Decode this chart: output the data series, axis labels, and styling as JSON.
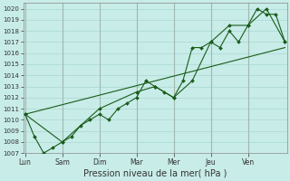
{
  "xlabel": "Pression niveau de la mer( hPa )",
  "background_color": "#c8ece8",
  "grid_color": "#a8d8d0",
  "line_color": "#1a5c1a",
  "ylim": [
    1007,
    1020.5
  ],
  "yticks": [
    1007,
    1008,
    1009,
    1010,
    1011,
    1012,
    1013,
    1014,
    1015,
    1016,
    1017,
    1018,
    1019,
    1020
  ],
  "day_labels": [
    "Lun",
    "Sam",
    "Dim",
    "Mar",
    "Mer",
    "Jeu",
    "Ven"
  ],
  "day_positions": [
    0,
    4,
    8,
    12,
    16,
    20,
    24
  ],
  "xlim": [
    -0.2,
    28.2
  ],
  "series1_x": [
    0,
    1,
    2,
    3,
    4,
    5,
    6,
    7,
    8,
    9,
    10,
    11,
    12,
    13,
    14,
    15,
    16,
    17,
    18,
    19,
    20,
    21,
    22,
    23,
    24,
    25,
    26,
    27,
    28
  ],
  "series1_y": [
    1010.5,
    1008.5,
    1007.0,
    1007.5,
    1008.0,
    1008.5,
    1009.5,
    1010.0,
    1010.5,
    1010.0,
    1011.0,
    1011.5,
    1012.0,
    1013.5,
    1013.0,
    1012.5,
    1012.0,
    1013.5,
    1016.5,
    1016.5,
    1017.0,
    1016.5,
    1018.0,
    1017.0,
    1018.5,
    1020.0,
    1019.5,
    1019.5,
    1017.0
  ],
  "series2_x": [
    0,
    4,
    8,
    12,
    14,
    16,
    18,
    20,
    22,
    24,
    26,
    28
  ],
  "series2_y": [
    1010.5,
    1008.0,
    1011.0,
    1012.5,
    1013.0,
    1012.0,
    1013.5,
    1017.0,
    1018.5,
    1018.5,
    1020.0,
    1017.0
  ],
  "trend_x": [
    0,
    28
  ],
  "trend_y": [
    1010.5,
    1016.5
  ],
  "vline_color": "#a0b8b0",
  "spine_color": "#888888",
  "tick_color": "#333333",
  "xlabel_fontsize": 7,
  "ytick_fontsize": 5,
  "xtick_fontsize": 5.5
}
